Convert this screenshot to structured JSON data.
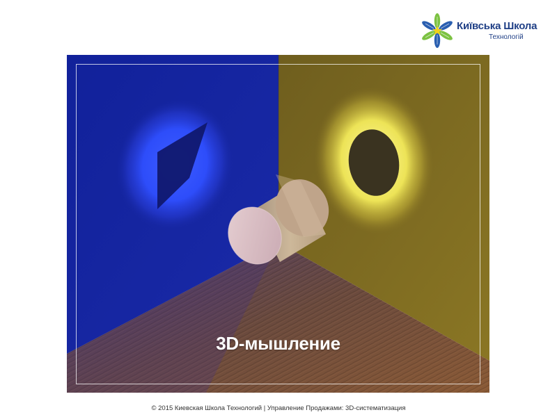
{
  "logo": {
    "title": "Київська Школа",
    "subtitle": "Технологій",
    "icon": "snowflake-star-logo-icon",
    "colors": {
      "text": "#1f3f86",
      "petal_green": "#7cc242",
      "petal_blue": "#2a5fb0",
      "center": "#f2d21b"
    }
  },
  "slide": {
    "caption": "3D-мышление",
    "footer": "© 2015 Киевская Школа Технологий | Управление Продажами: 3D-систематизация"
  },
  "scene": {
    "left_wall_color": "#13259a",
    "right_wall_color": "#6e5c1c",
    "left_light_color": "#2e4dff",
    "right_light_color": "#fff36a",
    "left_shadow_shape": "square",
    "right_shadow_shape": "circle",
    "object": "cylinder",
    "floor": "wood"
  }
}
